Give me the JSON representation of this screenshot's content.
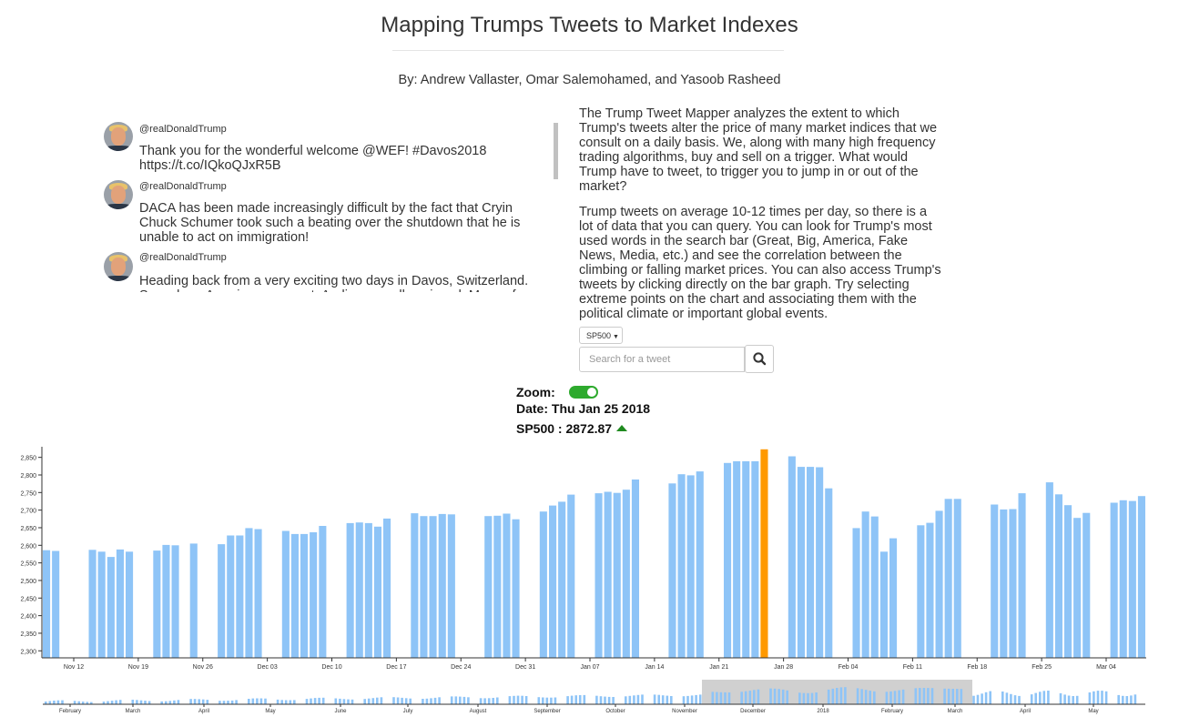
{
  "header": {
    "title": "Mapping Trumps Tweets to Market Indexes",
    "authors": "By: Andrew Vallaster, Omar Salemohamed, and Yasoob Rasheed"
  },
  "tweets": [
    {
      "handle": "@realDonaldTrump",
      "text": "Thank you for the wonderful welcome @WEF! #Davos2018 https://t.co/IQkoQJxR5B"
    },
    {
      "handle": "@realDonaldTrump",
      "text": "DACA has been made increasingly difficult by the fact that Cryin Chuck Schumer took such a beating over the shutdown that he is unable to act on immigration!"
    },
    {
      "handle": "@realDonaldTrump",
      "text": "Heading back from a very exciting two days in Davos, Switzerland. Speech on America was great. Audience really enjoyed. Many of"
    }
  ],
  "description": {
    "p1": "The Trump Tweet Mapper analyzes the extent to which Trump's tweets alter the price of many market indices that we consult on a daily basis. We, along with many high frequency trading algorithms, buy and sell on a trigger. What would Trump have to tweet, to trigger you to jump in or out of the market?",
    "p2": "Trump tweets on average 10-12 times per day, so there is a lot of data that you can query. You can look for Trump's most used words in the search bar (Great, Big, America, Fake News, Media, etc.) and see the correlation between the climbing or falling market prices. You can also access Trump's tweets by clicking directly on the bar graph. Try selecting extreme points on the chart and associating them with the political climate or important global events."
  },
  "controls": {
    "index_selected": "SP500",
    "search_placeholder": "Search for a tweet",
    "search_icon": "magnifier-icon"
  },
  "info": {
    "zoom_label": "Zoom:",
    "zoom_on": true,
    "date_label": "Date:",
    "date_value": "Thu Jan 25 2018",
    "price_label": "SP500 : 2872.87",
    "trend": "up"
  },
  "colors": {
    "bar": "#8ec4f7",
    "highlight": "#ff9900",
    "toggle": "#2eaa2e",
    "up": "#1f8a1f"
  },
  "chart_data": {
    "type": "bar",
    "series": [
      {
        "values": [
          2586,
          2584,
          null,
          null,
          null,
          2587,
          2582,
          2567,
          2588,
          2582,
          null,
          null,
          2585,
          2601,
          2600,
          null,
          2605,
          null,
          null,
          2603,
          2628,
          2628,
          2649,
          2646,
          null,
          null,
          2641,
          2632,
          2632,
          2637,
          2655,
          null,
          null,
          2663,
          2665,
          2663,
          2653,
          2676,
          null,
          null,
          2691,
          2683,
          2683,
          2689,
          2688,
          null,
          null,
          null,
          2683,
          2684,
          2690,
          2674,
          null,
          null,
          2696,
          2713,
          2724,
          2744,
          null,
          null,
          2748,
          2752,
          2749,
          2758,
          2787,
          null,
          null,
          null,
          2776,
          2802,
          2799,
          2810,
          null,
          null,
          2834,
          2839,
          2839,
          2839,
          2873,
          null,
          null,
          2853,
          2823,
          2823,
          2822,
          2762,
          null,
          null,
          2649,
          2696,
          2682,
          2582,
          2620,
          null,
          null,
          2657,
          2664,
          2698,
          2732,
          2732,
          null,
          null,
          null,
          2716,
          2702,
          2703,
          2748,
          null,
          null,
          2779,
          2745,
          2714,
          2678,
          2692,
          null,
          null,
          2721,
          2728,
          2726,
          2740
        ]
      }
    ],
    "highlight": "2018-01-25",
    "x_ticks": [
      "Nov 12",
      "Nov 19",
      "Nov 26",
      "Dec 03",
      "Dec 10",
      "Dec 17",
      "Dec 24",
      "Dec 31",
      "Jan 07",
      "Jan 14",
      "Jan 21",
      "Jan 28",
      "Feb 04",
      "Feb 11",
      "Feb 18",
      "Feb 25",
      "Mar 04"
    ],
    "y_ticks": [
      "2,300",
      "2,350",
      "2,400",
      "2,450",
      "2,500",
      "2,550",
      "2,600",
      "2,650",
      "2,700",
      "2,750",
      "2,800",
      "2,850"
    ],
    "ylim": [
      2280,
      2875
    ],
    "overview_ticks": [
      "February",
      "March",
      "April",
      "May",
      "June",
      "July",
      "August",
      "September",
      "October",
      "November",
      "December",
      "2018",
      "February",
      "March",
      "April",
      "May"
    ]
  }
}
